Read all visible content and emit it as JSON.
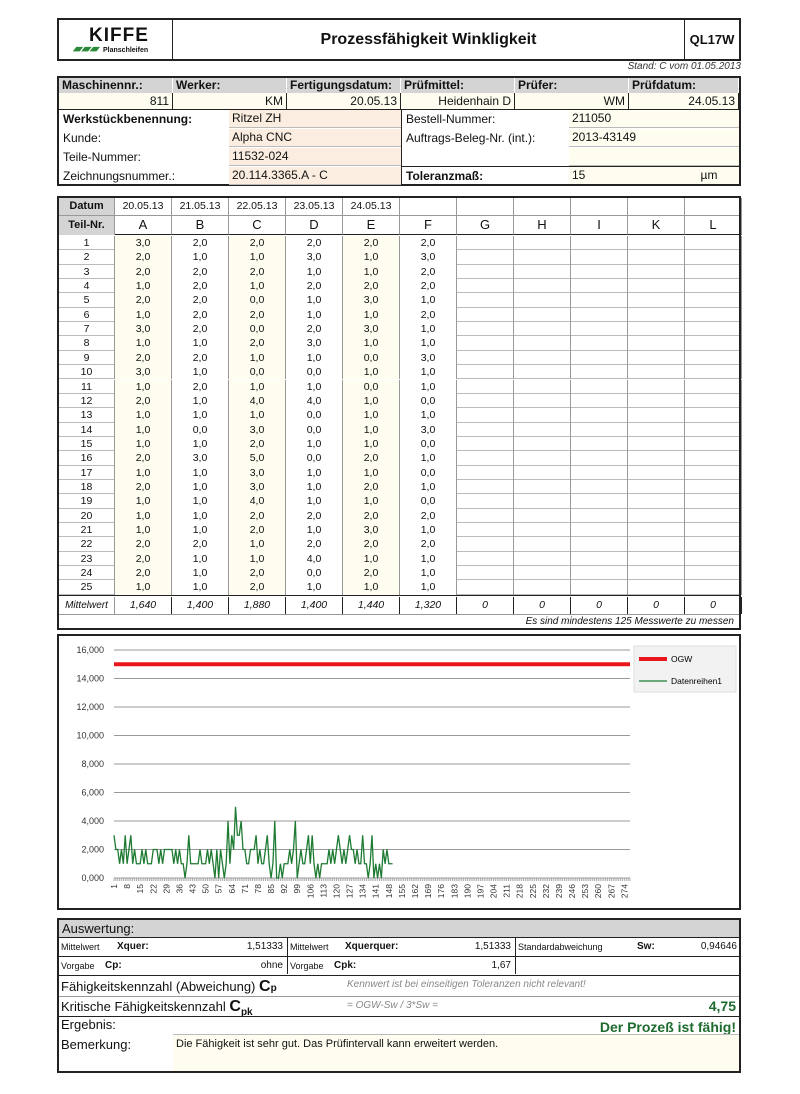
{
  "header": {
    "logo_text": "KIFFE",
    "logo_sub": "Planschleifen",
    "title": "Prozessfähigkeit Winkligkeit",
    "code": "QL17W",
    "stand": "Stand: C vom 01.05.2013"
  },
  "info": {
    "top_labels": [
      "Maschinennr.:",
      "Werker:",
      "Fertigungsdatum:",
      "Prüfmittel:",
      "Prüfer:",
      "Prüfdatum:"
    ],
    "top_values": [
      "811",
      "KM",
      "20.05.13",
      "Heidenhain D",
      "WM",
      "24.05.13"
    ],
    "werkstueck_label": "Werkstückbenennung:",
    "werkstueck": "Ritzel ZH",
    "kunde_label": "Kunde:",
    "kunde": "Alpha CNC",
    "teile_label": "Teile-Nummer:",
    "teile": "11532-024",
    "zeichnung_label": "Zeichnungsnummer.:",
    "zeichnung": "20.114.3365.A - C",
    "bestell_label": "Bestell-Nummer:",
    "bestell": "211050",
    "auftrag_label": "Auftrags-Beleg-Nr. (int.):",
    "auftrag": "2013-43149",
    "toleranz_label": "Toleranzmaß:",
    "toleranz": "15",
    "unit": "µm"
  },
  "table": {
    "datum_label": "Datum",
    "teil_label": "Teil-Nr.",
    "dates": [
      "20.05.13",
      "21.05.13",
      "22.05.13",
      "23.05.13",
      "24.05.13",
      "",
      "",
      "",
      "",
      "",
      ""
    ],
    "columns": [
      "A",
      "B",
      "C",
      "D",
      "E",
      "F",
      "G",
      "H",
      "I",
      "K",
      "L"
    ],
    "rows": [
      [
        "3,0",
        "2,0",
        "2,0",
        "2,0",
        "2,0",
        "2,0"
      ],
      [
        "2,0",
        "1,0",
        "1,0",
        "3,0",
        "1,0",
        "3,0"
      ],
      [
        "2,0",
        "2,0",
        "2,0",
        "1,0",
        "1,0",
        "2,0"
      ],
      [
        "1,0",
        "2,0",
        "1,0",
        "2,0",
        "2,0",
        "2,0"
      ],
      [
        "2,0",
        "2,0",
        "0,0",
        "1,0",
        "3,0",
        "1,0"
      ],
      [
        "1,0",
        "2,0",
        "2,0",
        "1,0",
        "1,0",
        "2,0"
      ],
      [
        "3,0",
        "2,0",
        "0,0",
        "2,0",
        "3,0",
        "1,0"
      ],
      [
        "1,0",
        "1,0",
        "2,0",
        "3,0",
        "1,0",
        "1,0"
      ],
      [
        "2,0",
        "2,0",
        "1,0",
        "1,0",
        "0,0",
        "3,0"
      ],
      [
        "3,0",
        "1,0",
        "0,0",
        "0,0",
        "1,0",
        "1,0"
      ],
      [
        "1,0",
        "2,0",
        "1,0",
        "1,0",
        "0,0",
        "1,0"
      ],
      [
        "2,0",
        "1,0",
        "4,0",
        "4,0",
        "1,0",
        "0,0"
      ],
      [
        "1,0",
        "1,0",
        "1,0",
        "0,0",
        "1,0",
        "1,0"
      ],
      [
        "1,0",
        "0,0",
        "3,0",
        "0,0",
        "1,0",
        "3,0"
      ],
      [
        "1,0",
        "1,0",
        "2,0",
        "1,0",
        "1,0",
        "0,0"
      ],
      [
        "2,0",
        "3,0",
        "5,0",
        "0,0",
        "2,0",
        "1,0"
      ],
      [
        "1,0",
        "1,0",
        "3,0",
        "1,0",
        "1,0",
        "0,0"
      ],
      [
        "2,0",
        "1,0",
        "3,0",
        "1,0",
        "2,0",
        "1,0"
      ],
      [
        "1,0",
        "1,0",
        "4,0",
        "1,0",
        "1,0",
        "0,0"
      ],
      [
        "1,0",
        "1,0",
        "2,0",
        "2,0",
        "2,0",
        "2,0"
      ],
      [
        "1,0",
        "1,0",
        "2,0",
        "1,0",
        "3,0",
        "1,0"
      ],
      [
        "2,0",
        "2,0",
        "1,0",
        "2,0",
        "2,0",
        "2,0"
      ],
      [
        "2,0",
        "1,0",
        "1,0",
        "4,0",
        "1,0",
        "1,0"
      ],
      [
        "2,0",
        "1,0",
        "2,0",
        "0,0",
        "2,0",
        "1,0"
      ],
      [
        "1,0",
        "1,0",
        "2,0",
        "1,0",
        "1,0",
        "1,0"
      ]
    ],
    "mittelwert_label": "Mittelwert",
    "mittelwerte": [
      "1,640",
      "1,400",
      "1,880",
      "1,400",
      "1,440",
      "1,320",
      "0",
      "0",
      "0",
      "0",
      "0"
    ],
    "note": "Es sind mindestens 125 Messwerte zu messen"
  },
  "chart_data": {
    "type": "line",
    "ylim": [
      0,
      16
    ],
    "yticks": [
      "0,000",
      "2,000",
      "4,000",
      "6,000",
      "8,000",
      "10,000",
      "12,000",
      "14,000",
      "16,000"
    ],
    "xlim": [
      1,
      277
    ],
    "xtick_step": 7,
    "grid": "horizontal",
    "legend": "right",
    "colors": {
      "ogw": "#e8161b",
      "data": "#1e7b32"
    },
    "series": [
      {
        "name": "OGW",
        "constant": 15
      },
      {
        "name": "Datenreihen1",
        "values": [
          3,
          2,
          2,
          1,
          2,
          1,
          3,
          1,
          2,
          3,
          1,
          2,
          1,
          1,
          1,
          2,
          1,
          2,
          1,
          1,
          1,
          2,
          2,
          2,
          1,
          2,
          1,
          2,
          2,
          2,
          2,
          2,
          1,
          2,
          1,
          2,
          1,
          1,
          0,
          1,
          3,
          1,
          1,
          1,
          1,
          1,
          2,
          1,
          1,
          1,
          2,
          1,
          2,
          1,
          0,
          2,
          0,
          2,
          1,
          0,
          1,
          4,
          1,
          3,
          2,
          5,
          3,
          3,
          4,
          2,
          2,
          1,
          1,
          2,
          2,
          2,
          3,
          1,
          2,
          1,
          1,
          2,
          3,
          1,
          0,
          1,
          4,
          0,
          0,
          1,
          0,
          1,
          1,
          1,
          2,
          1,
          2,
          4,
          0,
          1,
          2,
          1,
          1,
          2,
          3,
          1,
          3,
          1,
          0,
          1,
          0,
          1,
          1,
          1,
          1,
          2,
          1,
          2,
          1,
          2,
          3,
          2,
          1,
          2,
          1,
          2,
          3,
          2,
          2,
          1,
          2,
          1,
          1,
          3,
          1,
          1,
          0,
          1,
          3,
          0,
          1,
          0,
          1,
          0,
          2,
          1,
          2,
          1,
          1,
          1
        ]
      }
    ]
  },
  "eval": {
    "title": "Auswertung:",
    "mw_label": "Mittelwert",
    "xquer_label": "Xquer:",
    "xquer": "1,51333",
    "xquerquer_label": "Xquerquer:",
    "xquerquer": "1,51333",
    "sw_label": "Standardabweichung",
    "sw_sym": "Sw:",
    "sw": "0,94646",
    "vorgabe_label": "Vorgabe",
    "cp_sym": "Cp:",
    "cp_vorgabe": "ohne",
    "cpk_sym": "Cpk:",
    "cpk_vorgabe": "1,67",
    "cp_label": "Fähigkeitskennzahl (Abweichung)",
    "cp_big": "C",
    "cp_sub": "p",
    "cp_note": "Kennwert ist bei einseitigen Toleranzen nicht relevant!",
    "cpk_label": "Kritische Fähigkeitskennzahl",
    "cpk_big": "C",
    "cpk_sub": "pk",
    "cpk_formula": "= OGW-Sw / 3*Sw =",
    "cpk_value": "4,75",
    "ergebnis_label": "Ergebnis:",
    "ergebnis": "Der Prozeß ist fähig!",
    "bemerkung_label": "Bemerkung:",
    "bemerkung": "Die Fähigkeit ist sehr gut. Das Prüfintervall kann erweitert werden."
  }
}
